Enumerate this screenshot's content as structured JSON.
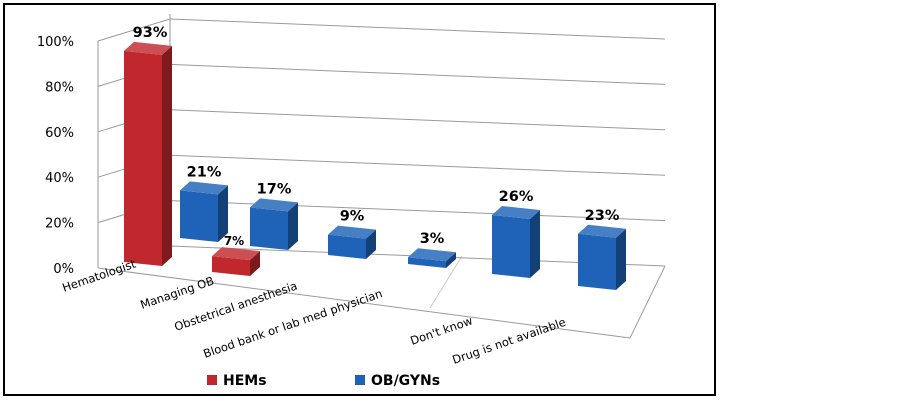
{
  "chart_data": {
    "type": "bar",
    "categories": [
      "Hematologist",
      "Managing OB",
      "Obstetrical anesthesia",
      "Blood bank or lab med physician",
      "Don't know",
      "Drug is not available"
    ],
    "series": [
      {
        "name": "HEMs",
        "values": [
          93,
          7,
          null,
          null,
          null,
          null
        ],
        "labels": [
          "93%",
          "7%",
          "",
          "",
          "",
          ""
        ],
        "color": "#c0282d"
      },
      {
        "name": "OB/GYNs",
        "values": [
          21,
          17,
          9,
          3,
          26,
          23
        ],
        "labels": [
          "21%",
          "17%",
          "9%",
          "3%",
          "26%",
          "23%"
        ],
        "color": "#1f63b8"
      }
    ],
    "y_ticks": [
      "0%",
      "20%",
      "40%",
      "60%",
      "80%",
      "100%"
    ],
    "ylim": [
      0,
      100
    ],
    "grid": true,
    "legend": "bottom",
    "style": "3d-clustered"
  }
}
